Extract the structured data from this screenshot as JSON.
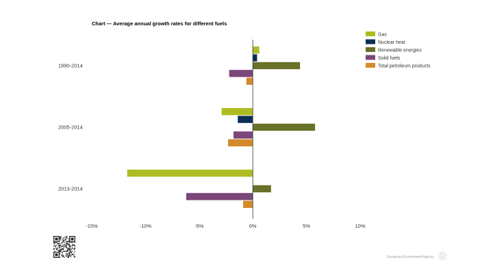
{
  "chart_data": {
    "type": "bar",
    "orientation": "horizontal",
    "title": "Chart — Average annual growth rates for different fuels",
    "categories": [
      "1990-2014",
      "2005-2014",
      "2013-2014"
    ],
    "series": [
      {
        "name": "Gas",
        "color": "#afbc21",
        "values": [
          0.6,
          -2.9,
          -11.7
        ]
      },
      {
        "name": "Nuclear heat",
        "color": "#0b2f55",
        "values": [
          0.4,
          -1.4,
          null
        ]
      },
      {
        "name": "Renewable energies",
        "color": "#6a7128",
        "values": [
          4.4,
          5.8,
          1.7
        ]
      },
      {
        "name": "Solid fuels",
        "color": "#7b4779",
        "values": [
          -2.2,
          -1.8,
          -6.2
        ]
      },
      {
        "name": "Total petroleum products",
        "color": "#d48a2a",
        "values": [
          -0.6,
          -2.3,
          -0.9
        ]
      }
    ],
    "xlim": [
      -15,
      10
    ],
    "xticks": [
      -15,
      -10,
      -5,
      0,
      5,
      10
    ],
    "tick_labels": [
      "-15%",
      "-10%",
      "-5%",
      "0%",
      "5%",
      "10%"
    ],
    "xlabel": "",
    "ylabel": "",
    "grid": false,
    "legend_position": "top-right"
  },
  "footer": {
    "agency": "European Environment Agency"
  }
}
